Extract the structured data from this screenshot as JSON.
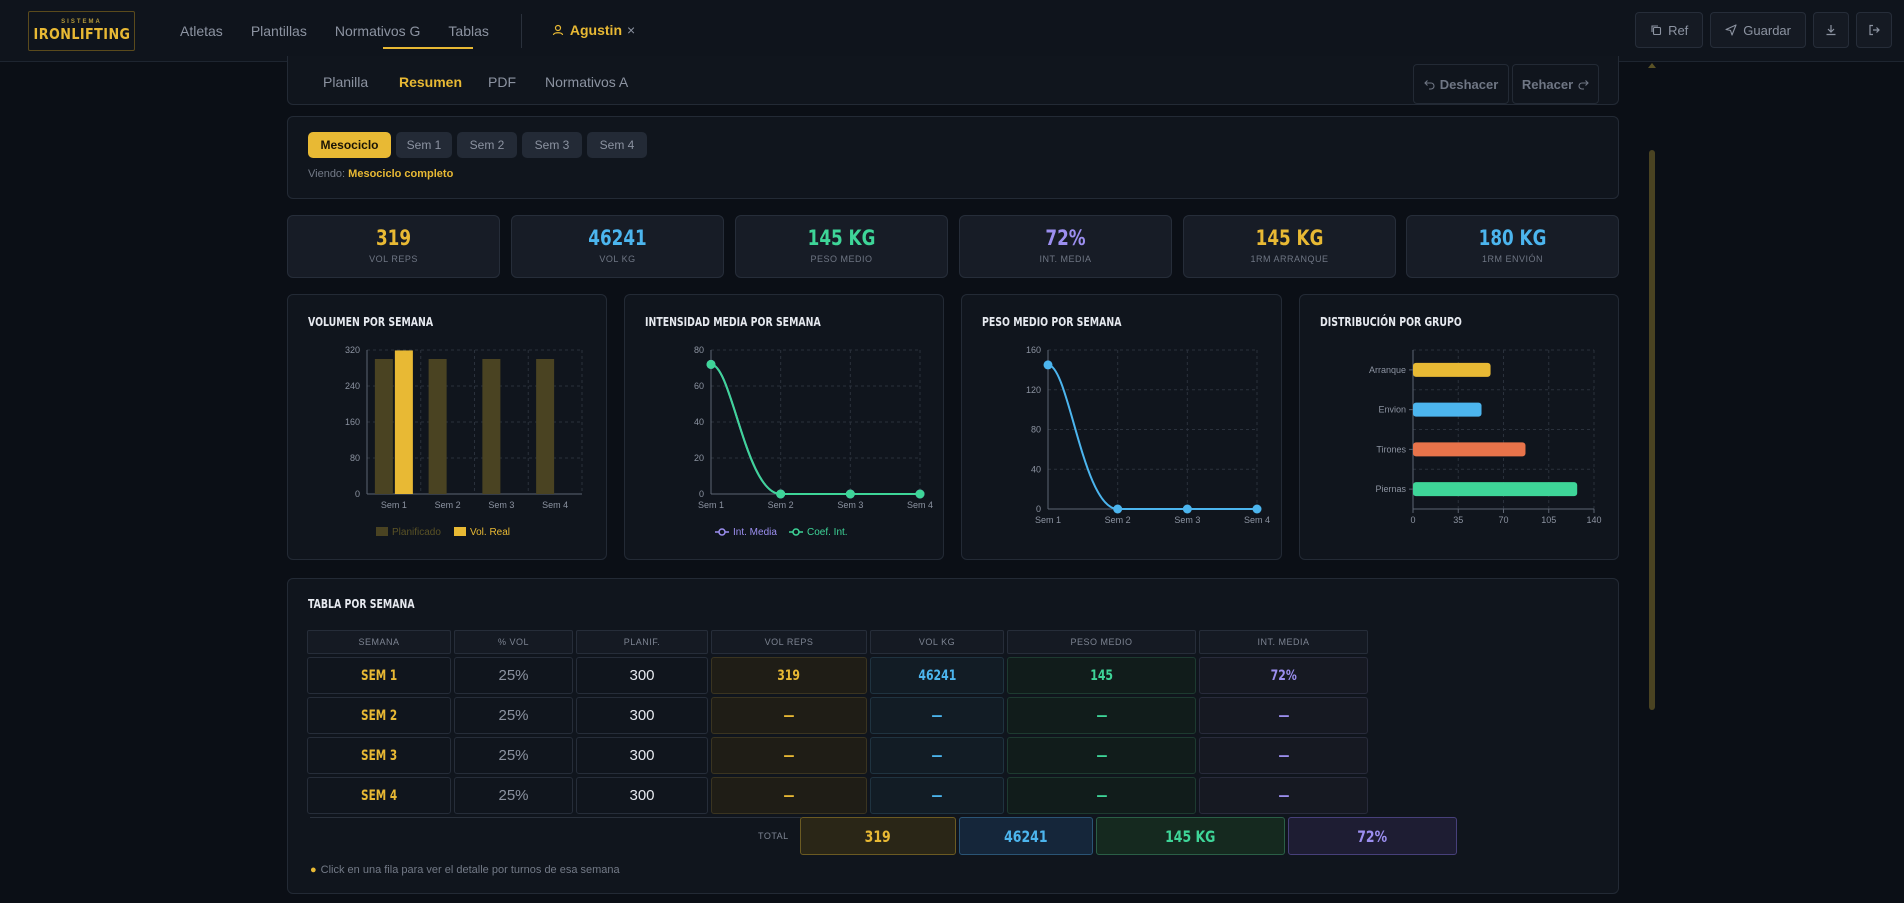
{
  "brand": {
    "sub": "SISTEMA",
    "main": "IRONLIFTING"
  },
  "nav": {
    "items": [
      "Atletas",
      "Plantillas",
      "Normativos G",
      "Tablas"
    ],
    "active": "Agustin",
    "active_close": "×"
  },
  "top_actions": {
    "ref": "Ref",
    "guardar": "Guardar"
  },
  "tabs": {
    "items": [
      "Planilla",
      "Resumen",
      "PDF",
      "Normativos A"
    ],
    "active": "Resumen",
    "undo": "Deshacer",
    "redo": "Rehacer"
  },
  "selector": {
    "pills": [
      "Mesociclo",
      "Sem 1",
      "Sem 2",
      "Sem 3",
      "Sem 4"
    ],
    "active": "Mesociclo",
    "viewing_label": "Viendo:",
    "viewing_value": "Mesociclo completo"
  },
  "kpis": [
    {
      "value": "319",
      "label": "VOL REPS",
      "color": "#e8b934"
    },
    {
      "value": "46241",
      "label": "VOL KG",
      "color": "#4cb5ee"
    },
    {
      "value": "145 KG",
      "label": "PESO MEDIO",
      "color": "#3ed598"
    },
    {
      "value": "72%",
      "label": "INT. MEDIA",
      "color": "#9c8ff0"
    },
    {
      "value": "145 KG",
      "label": "1RM ARRANQUE",
      "color": "#e8b934"
    },
    {
      "value": "180 KG",
      "label": "1RM ENVIÓN",
      "color": "#4cb5ee"
    }
  ],
  "chart_data": [
    {
      "type": "bar",
      "title": "VOLUMEN POR SEMANA",
      "categories": [
        "Sem 1",
        "Sem 2",
        "Sem 3",
        "Sem 4"
      ],
      "series": [
        {
          "name": "Planificado",
          "values": [
            300,
            300,
            300,
            300
          ],
          "color": "#4a4322"
        },
        {
          "name": "Vol. Real",
          "values": [
            319,
            0,
            0,
            0
          ],
          "color": "#e8b934"
        }
      ],
      "ylim": [
        0,
        320
      ],
      "yticks": [
        0,
        80,
        160,
        240,
        320
      ],
      "grid": true,
      "legend": "bottom"
    },
    {
      "type": "line",
      "title": "INTENSIDAD MEDIA POR SEMANA",
      "categories": [
        "Sem 1",
        "Sem 2",
        "Sem 3",
        "Sem 4"
      ],
      "series": [
        {
          "name": "Int. Media",
          "values": [
            72,
            0,
            0,
            0
          ],
          "color": "#9c8ff0"
        },
        {
          "name": "Coef. Int.",
          "values": [
            72,
            0,
            0,
            0
          ],
          "color": "#3ed598"
        }
      ],
      "ylim": [
        0,
        80
      ],
      "yticks": [
        0,
        20,
        40,
        60,
        80
      ],
      "grid": true,
      "legend": "bottom"
    },
    {
      "type": "line",
      "title": "PESO MEDIO POR SEMANA",
      "categories": [
        "Sem 1",
        "Sem 2",
        "Sem 3",
        "Sem 4"
      ],
      "series": [
        {
          "values": [
            145,
            0,
            0,
            0
          ],
          "color": "#4cb5ee"
        }
      ],
      "ylim": [
        0,
        160
      ],
      "yticks": [
        0,
        40,
        80,
        120,
        160
      ],
      "grid": true
    },
    {
      "type": "bar",
      "orientation": "horizontal",
      "title": "DISTRIBUCIÓN POR GRUPO",
      "categories": [
        "Arranque",
        "Envion",
        "Tirones",
        "Piernas"
      ],
      "values": [
        60,
        53,
        87,
        127
      ],
      "colors": [
        "#e8b934",
        "#4cb5ee",
        "#e8734a",
        "#3ed598"
      ],
      "xlim": [
        0,
        140
      ],
      "xticks": [
        0,
        35,
        70,
        105,
        140
      ],
      "grid": true
    }
  ],
  "table": {
    "title": "TABLA POR SEMANA",
    "headers": [
      "SEMANA",
      "% VOL",
      "PLANIF.",
      "VOL REPS",
      "VOL KG",
      "PESO MEDIO",
      "INT. MEDIA"
    ],
    "rows": [
      [
        "SEM 1",
        "25%",
        "300",
        "319",
        "46241",
        "145",
        "72%"
      ],
      [
        "SEM 2",
        "25%",
        "300",
        "—",
        "—",
        "—",
        "—"
      ],
      [
        "SEM 3",
        "25%",
        "300",
        "—",
        "—",
        "—",
        "—"
      ],
      [
        "SEM 4",
        "25%",
        "300",
        "—",
        "—",
        "—",
        "—"
      ]
    ],
    "total_label": "TOTAL",
    "totals": [
      "319",
      "46241",
      "145 KG",
      "72%"
    ],
    "hint": "Click en una fila para ver el detalle por turnos de esa semana"
  }
}
